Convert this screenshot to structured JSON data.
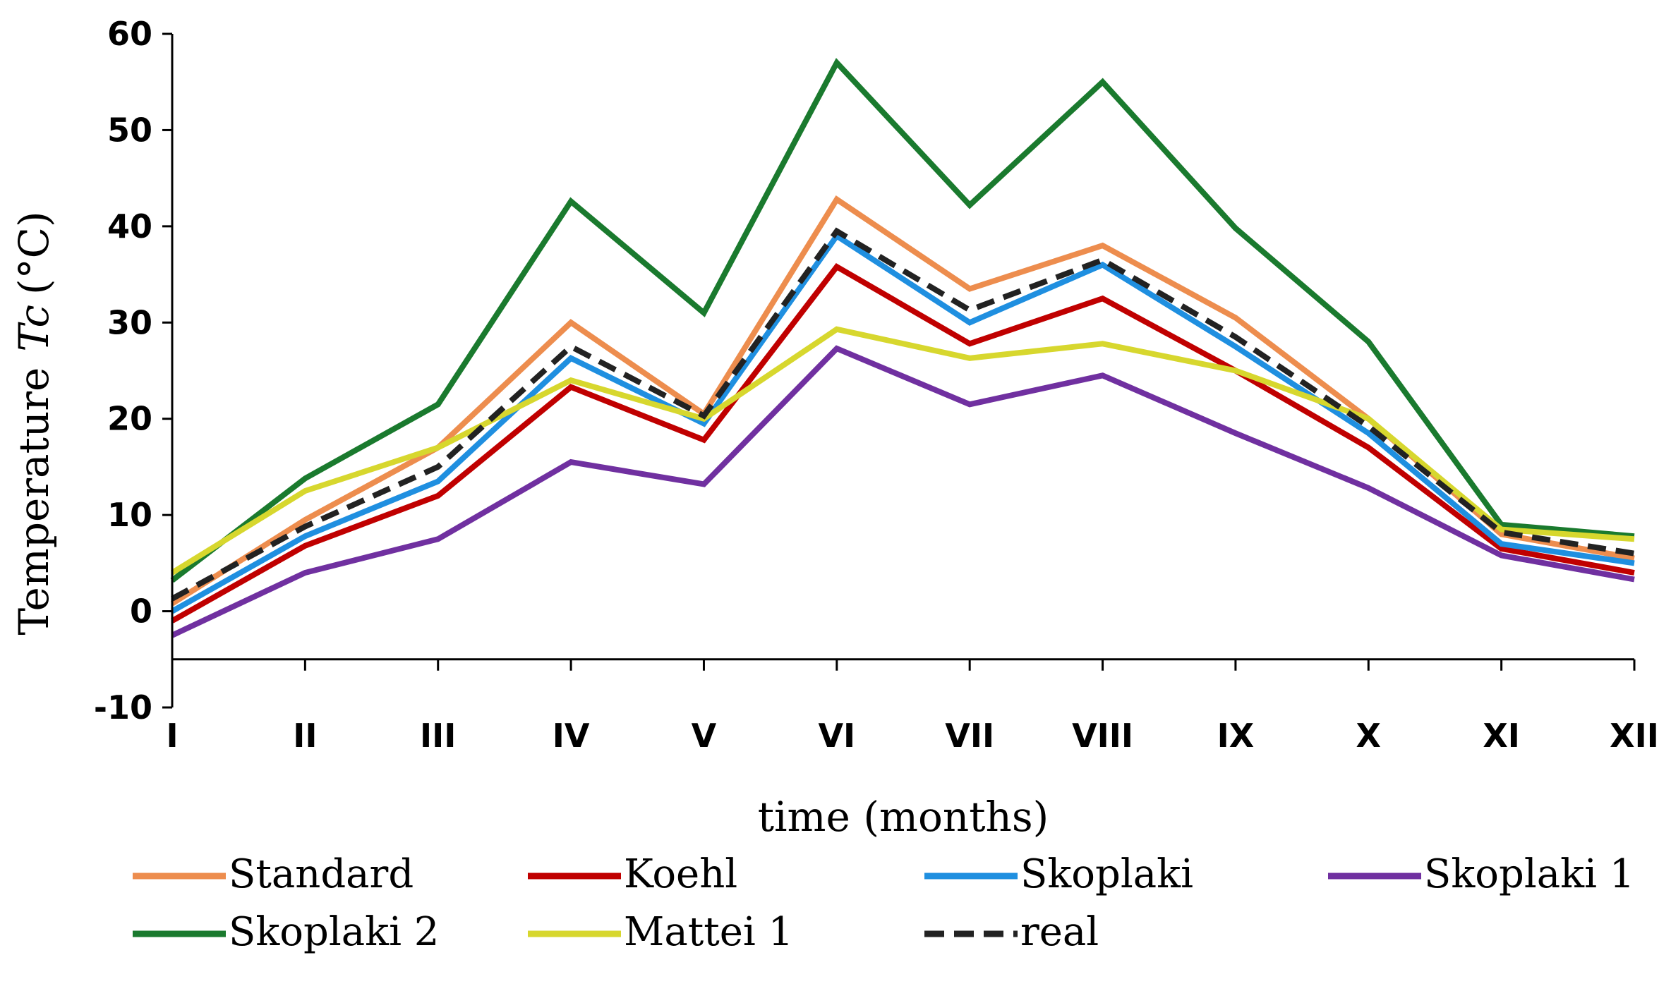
{
  "chart_data": {
    "type": "line",
    "title": "",
    "xlabel": "time (months)",
    "ylabel_prefix": "Temperature",
    "ylabel_symbol": "Tc",
    "ylabel_unit": "(°C)",
    "categories": [
      "I",
      "II",
      "III",
      "IV",
      "V",
      "VI",
      "VII",
      "VIII",
      "IX",
      "X",
      "XI",
      "XII"
    ],
    "ylim": [
      -10,
      60
    ],
    "yticks": [
      -10,
      0,
      10,
      20,
      30,
      40,
      50,
      60
    ],
    "grid": false,
    "legend_position": "bottom",
    "series": [
      {
        "name": "Standard",
        "color": "#ED8D4E",
        "dash": false,
        "values": [
          0.8,
          9.5,
          17,
          30,
          20.5,
          42.8,
          33.5,
          38,
          30.5,
          20,
          8,
          5.5
        ]
      },
      {
        "name": "Koehl",
        "color": "#C00000",
        "dash": false,
        "values": [
          -1,
          6.8,
          12,
          23.3,
          17.8,
          35.8,
          27.8,
          32.5,
          25,
          17,
          6.5,
          4
        ]
      },
      {
        "name": "Skoplaki",
        "color": "#1F8FE0",
        "dash": false,
        "values": [
          0,
          7.8,
          13.5,
          26.3,
          19.5,
          39,
          30,
          36,
          27.5,
          18.5,
          7,
          5
        ]
      },
      {
        "name": "Skoplaki 1",
        "color": "#7030A0",
        "dash": false,
        "values": [
          -2.5,
          4,
          7.5,
          15.5,
          13.2,
          27.3,
          21.5,
          24.5,
          18.5,
          12.8,
          5.8,
          3.3
        ]
      },
      {
        "name": "Skoplaki 2",
        "color": "#1A7A2E",
        "dash": false,
        "values": [
          3.2,
          13.8,
          21.5,
          42.6,
          31,
          57,
          42.2,
          55,
          39.8,
          28,
          9,
          7.8
        ]
      },
      {
        "name": "Mattei 1",
        "color": "#D7D72E",
        "dash": false,
        "values": [
          4,
          12.5,
          17,
          24,
          20,
          29.3,
          26.3,
          27.8,
          25,
          20,
          8.5,
          7.5
        ]
      },
      {
        "name": "real",
        "color": "#222222",
        "dash": true,
        "values": [
          1.3,
          8.8,
          15,
          27.5,
          20.3,
          39.5,
          31.3,
          36.5,
          28.5,
          19.2,
          8.2,
          6
        ]
      }
    ]
  }
}
